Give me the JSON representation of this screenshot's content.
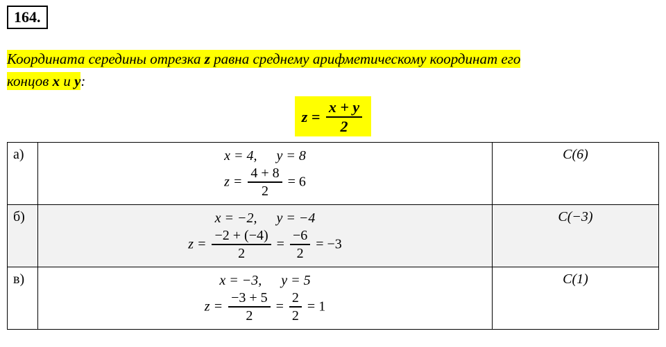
{
  "problem_number": "164",
  "theorem": {
    "line1_pre": "Координата середины отрезка ",
    "z": "z",
    "line1_mid": "  равна среднему арифметическому координат его",
    "line2_pre": "концов ",
    "x": "x",
    "and": " и ",
    "y": "y",
    "colon": ":"
  },
  "formula": {
    "lhs": "z",
    "eq": " = ",
    "num": "x + y",
    "den": "2"
  },
  "rows": [
    {
      "label": "а)",
      "given_x": "x = 4,",
      "given_y": "y = 8",
      "calc_lhs": "z = ",
      "calc_num": "4 + 8",
      "calc_den": "2",
      "calc_tail": " = 6",
      "answer": "C(6)",
      "shaded": false
    },
    {
      "label": "б)",
      "given_x": "x = −2,",
      "given_y": "y = −4",
      "calc_lhs": "z = ",
      "calc_num": "−2 + (−4)",
      "calc_den": "2",
      "mid_eq": " = ",
      "calc_num2": "−6",
      "calc_den2": "2",
      "calc_tail": " = −3",
      "answer": "C(−3)",
      "shaded": true
    },
    {
      "label": "в)",
      "given_x": "x = −3,",
      "given_y": "y = 5",
      "calc_lhs": "z = ",
      "calc_num": "−3 + 5",
      "calc_den": "2",
      "mid_eq": " = ",
      "calc_num2": "2",
      "calc_den2": "2",
      "calc_tail": " = 1",
      "answer": "C(1)",
      "shaded": false
    }
  ],
  "colors": {
    "highlight": "#ffff00",
    "shaded_row": "#f2f2f2",
    "border": "#000000",
    "background": "#ffffff"
  }
}
